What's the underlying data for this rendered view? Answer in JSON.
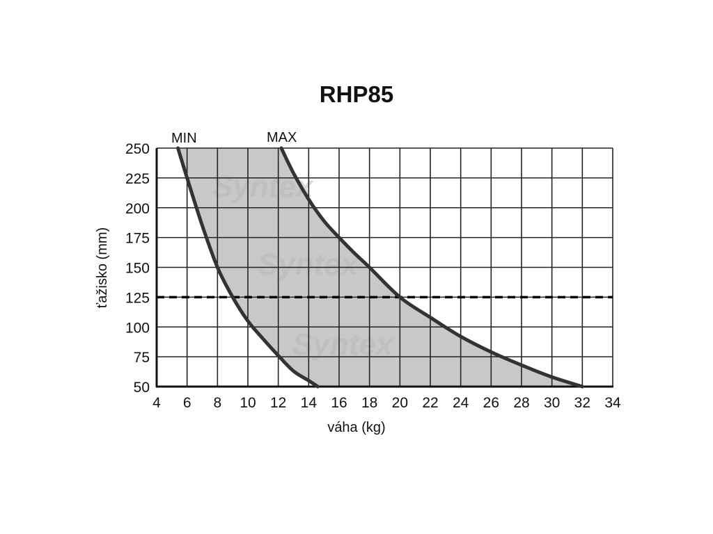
{
  "chart_data": {
    "type": "area",
    "title": "RHP85",
    "xlabel": "váha (kg)",
    "ylabel": "ťažisko (mm)",
    "xlim": [
      4,
      34
    ],
    "ylim": [
      50,
      250
    ],
    "x_ticks": [
      4,
      6,
      8,
      10,
      12,
      14,
      16,
      18,
      20,
      22,
      24,
      26,
      28,
      30,
      32,
      34
    ],
    "y_ticks": [
      50,
      75,
      100,
      125,
      150,
      175,
      200,
      225,
      250
    ],
    "grid": true,
    "series": [
      {
        "name": "MIN",
        "x": [
          5.4,
          6.0,
          7.0,
          8.0,
          9.0,
          10.0,
          11.0,
          12.0,
          13.0,
          14.0,
          14.6
        ],
        "y": [
          250,
          225,
          185,
          150,
          125,
          105,
          90,
          76,
          63,
          55,
          50
        ]
      },
      {
        "name": "MAX",
        "x": [
          12.2,
          13.0,
          14.0,
          15.0,
          16.0,
          17.0,
          18.0,
          20.0,
          22.0,
          24.0,
          26.0,
          28.0,
          30.0,
          32.0
        ],
        "y": [
          250,
          229,
          207,
          189,
          175,
          162,
          150,
          125,
          108,
          92,
          79,
          68,
          58,
          50
        ]
      }
    ],
    "reference_line": {
      "y": 125,
      "style": "dashed"
    },
    "watermark": "Syntex",
    "colors": {
      "fill": "#c8c8c8",
      "curve": "#333333",
      "grid": "#222222",
      "axis": "#111111"
    }
  }
}
